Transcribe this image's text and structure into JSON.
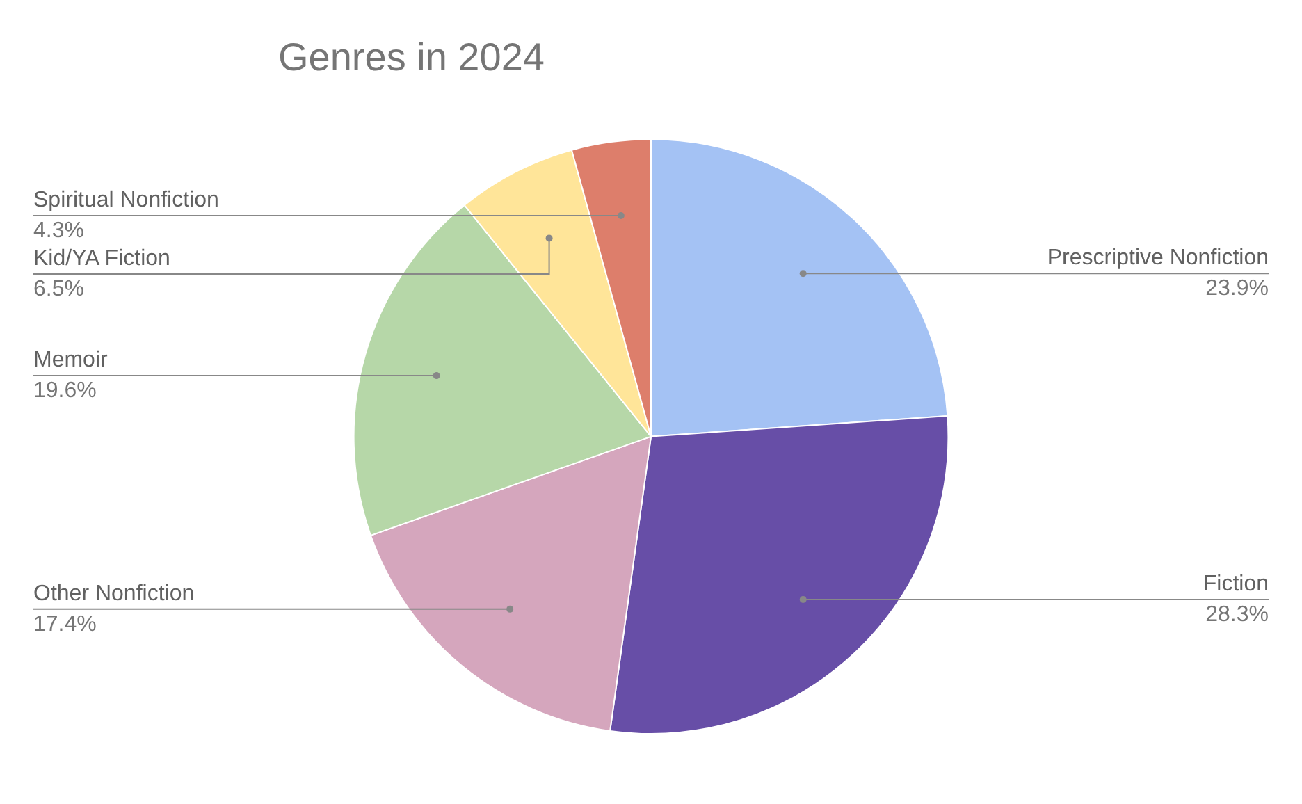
{
  "chart_data": {
    "type": "pie",
    "title": "Genres in 2024",
    "categories": [
      "Prescriptive Nonfiction",
      "Fiction",
      "Other Nonfiction",
      "Memoir",
      "Kid/YA Fiction",
      "Spiritual Nonfiction"
    ],
    "values": [
      23.9,
      28.3,
      17.4,
      19.6,
      6.5,
      4.3
    ],
    "colors": [
      "#a4c2f4",
      "#674ea7",
      "#d5a6bd",
      "#b6d7a8",
      "#ffe599",
      "#dd7e6b"
    ],
    "value_labels": [
      "23.9%",
      "28.3%",
      "17.4%",
      "19.6%",
      "6.5%",
      "4.3%"
    ],
    "legend": false
  }
}
